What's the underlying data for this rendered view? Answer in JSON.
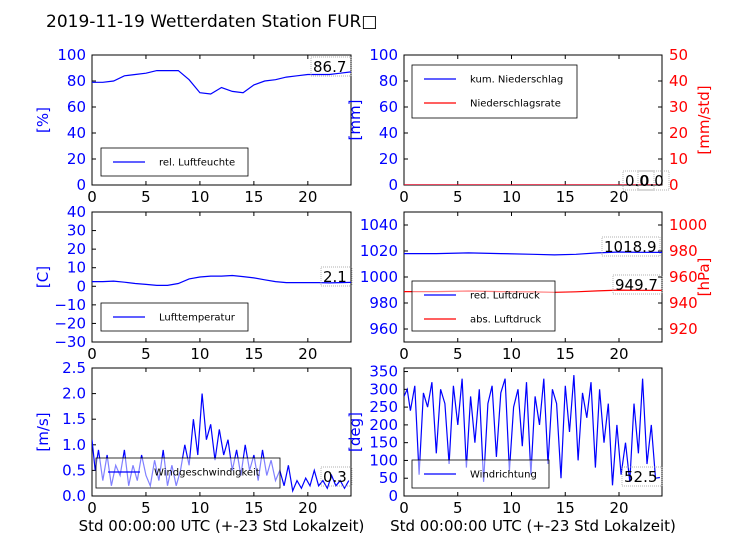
{
  "title": "2019-11-19 Wetterdaten Station FUR□",
  "colors": {
    "blue": "#0000ff",
    "red": "#ff0000",
    "black": "#000000"
  },
  "chart_data": [
    {
      "id": "humidity",
      "type": "line",
      "ylabel": "[%]",
      "ylim": [
        0,
        100
      ],
      "yticks": [
        "0",
        "20",
        "40",
        "60",
        "80",
        "100"
      ],
      "xlim": [
        0,
        24
      ],
      "xticks": [
        "0",
        "5",
        "10",
        "15",
        "20"
      ],
      "legend": [
        "rel. Luftfeuchte"
      ],
      "annotation": "86.7",
      "series": [
        {
          "name": "rel. Luftfeuchte",
          "color": "#0000ff",
          "x": [
            0,
            1,
            2,
            3,
            4,
            5,
            6,
            7,
            8,
            9,
            10,
            11,
            12,
            13,
            14,
            15,
            16,
            17,
            18,
            19,
            20,
            21,
            22,
            23,
            24
          ],
          "y": [
            79,
            79,
            80,
            84,
            85,
            86,
            88,
            88,
            88,
            81,
            71,
            70,
            75,
            72,
            71,
            77,
            80,
            81,
            83,
            84,
            85,
            85,
            85,
            86,
            87
          ]
        }
      ]
    },
    {
      "id": "precip",
      "type": "line",
      "ylabel": "[mm]",
      "ylabel2": "[mm/std]",
      "ylim": [
        0,
        100
      ],
      "yticks": [
        "0",
        "20",
        "40",
        "60",
        "80",
        "100"
      ],
      "y2lim": [
        0,
        50
      ],
      "y2ticks": [
        "0",
        "10",
        "20",
        "30",
        "40",
        "50"
      ],
      "xlim": [
        0,
        24
      ],
      "xticks": [
        "0",
        "5",
        "10",
        "15",
        "20"
      ],
      "legend": [
        "kum. Niederschlag",
        "Niederschlagsrate"
      ],
      "annotations": [
        "0.0",
        "0.0"
      ],
      "series": [
        {
          "name": "kum. Niederschlag",
          "color": "#0000ff",
          "x": [
            0,
            24
          ],
          "y": [
            0,
            0
          ]
        },
        {
          "name": "Niederschlagsrate",
          "color": "#ff0000",
          "x": [
            0,
            24
          ],
          "y": [
            0,
            0
          ]
        }
      ]
    },
    {
      "id": "temperature",
      "type": "line",
      "ylabel": "[C]",
      "ylim": [
        -30,
        40
      ],
      "yticks": [
        "−30",
        "−20",
        "−10",
        "0",
        "10",
        "20",
        "30",
        "40"
      ],
      "xlim": [
        0,
        24
      ],
      "xticks": [
        "0",
        "5",
        "10",
        "15",
        "20"
      ],
      "legend": [
        "Lufttemperatur"
      ],
      "annotation": "2.1",
      "series": [
        {
          "name": "Lufttemperatur",
          "color": "#0000ff",
          "x": [
            0,
            1,
            2,
            3,
            4,
            5,
            6,
            7,
            8,
            9,
            10,
            11,
            12,
            13,
            14,
            15,
            16,
            17,
            18,
            19,
            20,
            21,
            22,
            23,
            24
          ],
          "y": [
            2.5,
            2.5,
            2.8,
            2.2,
            1.5,
            1,
            0.5,
            0.5,
            1.5,
            4,
            5,
            5.5,
            5.5,
            5.8,
            5.2,
            4.5,
            3.5,
            2.5,
            2,
            2,
            2,
            2,
            1.8,
            2,
            2.1
          ]
        }
      ]
    },
    {
      "id": "pressure",
      "type": "line",
      "ylabel2": "[hPa]",
      "ylim": [
        950,
        1050
      ],
      "yticks": [
        "960",
        "980",
        "1000",
        "1020",
        "1040"
      ],
      "y2lim": [
        910,
        1010
      ],
      "y2ticks": [
        "920",
        "940",
        "960",
        "980",
        "1000"
      ],
      "xlim": [
        0,
        24
      ],
      "xticks": [
        "0",
        "5",
        "10",
        "15",
        "20"
      ],
      "legend": [
        "red. Luftdruck",
        "abs. Luftdruck"
      ],
      "annotations": [
        "1018.9",
        "949.7"
      ],
      "series": [
        {
          "name": "red. Luftdruck",
          "color": "#0000ff",
          "x": [
            0,
            3,
            6,
            9,
            12,
            14,
            16,
            18,
            20,
            22,
            24
          ],
          "y": [
            1018,
            1018,
            1018.5,
            1018,
            1017.5,
            1017,
            1017.5,
            1018.5,
            1019.2,
            1019,
            1018.9
          ]
        },
        {
          "name": "abs. Luftdruck",
          "color": "#ff0000",
          "x": [
            0,
            3,
            6,
            9,
            12,
            14,
            16,
            18,
            20,
            22,
            24
          ],
          "y": [
            948.8,
            948.8,
            949.2,
            948.8,
            948.5,
            948.2,
            948.6,
            949.3,
            949.9,
            949.8,
            949.7
          ]
        }
      ]
    },
    {
      "id": "wind_speed",
      "type": "line",
      "ylabel": "[m/s]",
      "ylim": [
        0,
        2.5
      ],
      "yticks": [
        "0.0",
        "0.5",
        "1.0",
        "1.5",
        "2.0",
        "2.5"
      ],
      "xlim": [
        0,
        24
      ],
      "xticks": [
        "0",
        "5",
        "10",
        "15",
        "20"
      ],
      "xlabel": "Std 00:00:00 UTC (+-23 Std Lokalzeit)",
      "legend": [
        "Windgeschwindigkeit"
      ],
      "annotation": "0.3",
      "series": [
        {
          "name": "Windgeschwindigkeit",
          "color": "#0000ff",
          "x": [
            0,
            0.3,
            0.6,
            1,
            1.4,
            1.8,
            2.2,
            2.6,
            3,
            3.4,
            3.8,
            4.2,
            4.6,
            5,
            5.4,
            5.8,
            6.2,
            6.6,
            7,
            7.4,
            7.8,
            8.2,
            8.6,
            9,
            9.4,
            9.8,
            10.2,
            10.6,
            11,
            11.4,
            11.8,
            12.2,
            12.6,
            13,
            13.4,
            13.8,
            14.2,
            14.6,
            15,
            15.4,
            15.8,
            16.2,
            16.6,
            17,
            17.4,
            17.8,
            18.2,
            18.6,
            19,
            19.4,
            19.8,
            20.2,
            20.6,
            21,
            21.4,
            21.8,
            22.2,
            22.6,
            23,
            23.4,
            23.8
          ],
          "y": [
            1.1,
            0.5,
            0.9,
            0.3,
            0.8,
            0.2,
            0.6,
            0.4,
            0.9,
            0.2,
            0.6,
            0.3,
            0.8,
            0.4,
            0.2,
            0.7,
            0.3,
            0.9,
            0.2,
            0.6,
            0.2,
            0.5,
            1.0,
            0.6,
            1.5,
            0.8,
            2.0,
            1.1,
            1.4,
            0.7,
            1.3,
            0.8,
            1.1,
            0.5,
            0.9,
            0.4,
            1.0,
            0.5,
            0.8,
            0.3,
            0.9,
            0.4,
            0.7,
            0.3,
            0.5,
            0.2,
            0.6,
            0.1,
            0.3,
            0.15,
            0.35,
            0.2,
            0.5,
            0.2,
            0.3,
            0.15,
            0.4,
            0.2,
            0.3,
            0.15,
            0.3
          ]
        }
      ]
    },
    {
      "id": "wind_dir",
      "type": "line",
      "ylabel": "[deg]",
      "ylim": [
        0,
        360
      ],
      "yticks": [
        "0",
        "50",
        "100",
        "150",
        "200",
        "250",
        "300",
        "350"
      ],
      "xlim": [
        0,
        24
      ],
      "xticks": [
        "0",
        "5",
        "10",
        "15",
        "20"
      ],
      "xlabel": "Std 00:00:00 UTC (+-23 Std Lokalzeit)",
      "legend": [
        "Windrichtung"
      ],
      "annotation": "52.5",
      "series": [
        {
          "name": "Windrichtung",
          "color": "#0000ff",
          "x": [
            0,
            0.3,
            0.6,
            1,
            1.4,
            1.8,
            2.2,
            2.6,
            3,
            3.4,
            3.8,
            4.2,
            4.6,
            5,
            5.4,
            5.8,
            6.2,
            6.6,
            7,
            7.4,
            7.8,
            8.2,
            8.6,
            9,
            9.4,
            9.8,
            10.2,
            10.6,
            11,
            11.4,
            11.8,
            12.2,
            12.6,
            13,
            13.4,
            13.8,
            14.2,
            14.6,
            15,
            15.4,
            15.8,
            16.2,
            16.6,
            17,
            17.4,
            17.8,
            18.2,
            18.6,
            19,
            19.4,
            19.8,
            20.2,
            20.6,
            21,
            21.4,
            21.8,
            22.2,
            22.6,
            23,
            23.4,
            23.8
          ],
          "y": [
            280,
            300,
            240,
            310,
            60,
            290,
            250,
            320,
            120,
            300,
            260,
            90,
            310,
            200,
            330,
            80,
            280,
            150,
            300,
            40,
            260,
            310,
            110,
            290,
            330,
            70,
            250,
            300,
            140,
            320,
            60,
            280,
            200,
            330,
            90,
            300,
            260,
            50,
            310,
            180,
            340,
            100,
            290,
            220,
            320,
            80,
            300,
            150,
            260,
            30,
            200,
            60,
            150,
            40,
            260,
            120,
            330,
            90,
            200,
            50,
            52
          ]
        }
      ]
    }
  ]
}
